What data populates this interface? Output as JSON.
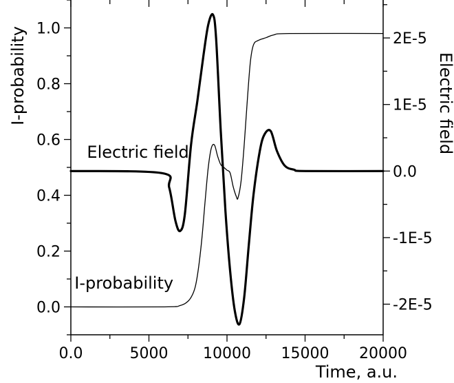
{
  "chart_data": {
    "type": "line",
    "xlabel": "Time, a.u.",
    "ylabel": "I-probability",
    "y2label": "Electric field",
    "xlim": [
      0,
      20000
    ],
    "ylim": [
      -0.1,
      1.1
    ],
    "y2lim": [
      -2.46e-05,
      2.57e-05
    ],
    "x_ticks": [
      {
        "value": 0,
        "label": "0.0"
      },
      {
        "value": 5000,
        "label": "5000"
      },
      {
        "value": 10000,
        "label": "10000"
      },
      {
        "value": 15000,
        "label": "15000"
      },
      {
        "value": 20000,
        "label": "20000"
      }
    ],
    "y_ticks": [
      {
        "value": 0.0,
        "label": "0.0"
      },
      {
        "value": 0.2,
        "label": "0.2"
      },
      {
        "value": 0.4,
        "label": "0.4"
      },
      {
        "value": 0.6,
        "label": "0.6"
      },
      {
        "value": 0.8,
        "label": "0.8"
      },
      {
        "value": 1.0,
        "label": "1.0"
      }
    ],
    "y2_ticks": [
      {
        "value": -2e-05,
        "label": "-2E-5"
      },
      {
        "value": -1e-05,
        "label": "-1E-5"
      },
      {
        "value": 0,
        "label": "0.0"
      },
      {
        "value": 1e-05,
        "label": "1E-5"
      },
      {
        "value": 2e-05,
        "label": "2E-5"
      }
    ],
    "annotations": [
      {
        "text": "Electric field",
        "x": 4300,
        "y": 0.535
      },
      {
        "text": "I-probability",
        "x": 3400,
        "y": 0.065
      }
    ],
    "series": [
      {
        "axis": "y2",
        "stroke": "#000000",
        "weight": "thick",
        "x": [
          0,
          5800,
          6300,
          6700,
          7000,
          7300,
          7700,
          8100,
          8500,
          8800,
          9100,
          9300,
          9600,
          9900,
          10200,
          10500,
          10800,
          11100,
          11400,
          11700,
          12100,
          12400,
          12800,
          13200,
          13700,
          14300,
          15000,
          20000
        ],
        "y": [
          0,
          -3e-07,
          -2.5e-06,
          -7.5e-06,
          -9e-06,
          -6.5e-06,
          4e-06,
          1.05e-05,
          1.75e-05,
          2.2e-05,
          2.35e-05,
          2e-05,
          6e-06,
          -6e-06,
          -1.5e-05,
          -2.1e-05,
          -2.3e-05,
          -1.9e-05,
          -1.1e-05,
          -3.5e-06,
          3e-06,
          5.5e-06,
          6e-06,
          3e-06,
          8e-07,
          2e-07,
          0,
          0
        ]
      },
      {
        "axis": "y",
        "stroke": "#000000",
        "weight": "thin",
        "x": [
          0,
          6000,
          7000,
          7500,
          7800,
          8000,
          8200,
          8400,
          8600,
          8800,
          9000,
          9200,
          9400,
          9600,
          9800,
          10000,
          10200,
          10400,
          10600,
          10700,
          10900,
          11100,
          11300,
          11500,
          11700,
          12000,
          12500,
          13000,
          14000,
          20000
        ],
        "y": [
          0,
          0.0,
          0.005,
          0.02,
          0.045,
          0.08,
          0.15,
          0.25,
          0.38,
          0.5,
          0.57,
          0.58,
          0.54,
          0.51,
          0.5,
          0.49,
          0.48,
          0.43,
          0.395,
          0.39,
          0.45,
          0.58,
          0.74,
          0.88,
          0.94,
          0.955,
          0.965,
          0.975,
          0.98,
          0.98
        ]
      }
    ]
  }
}
